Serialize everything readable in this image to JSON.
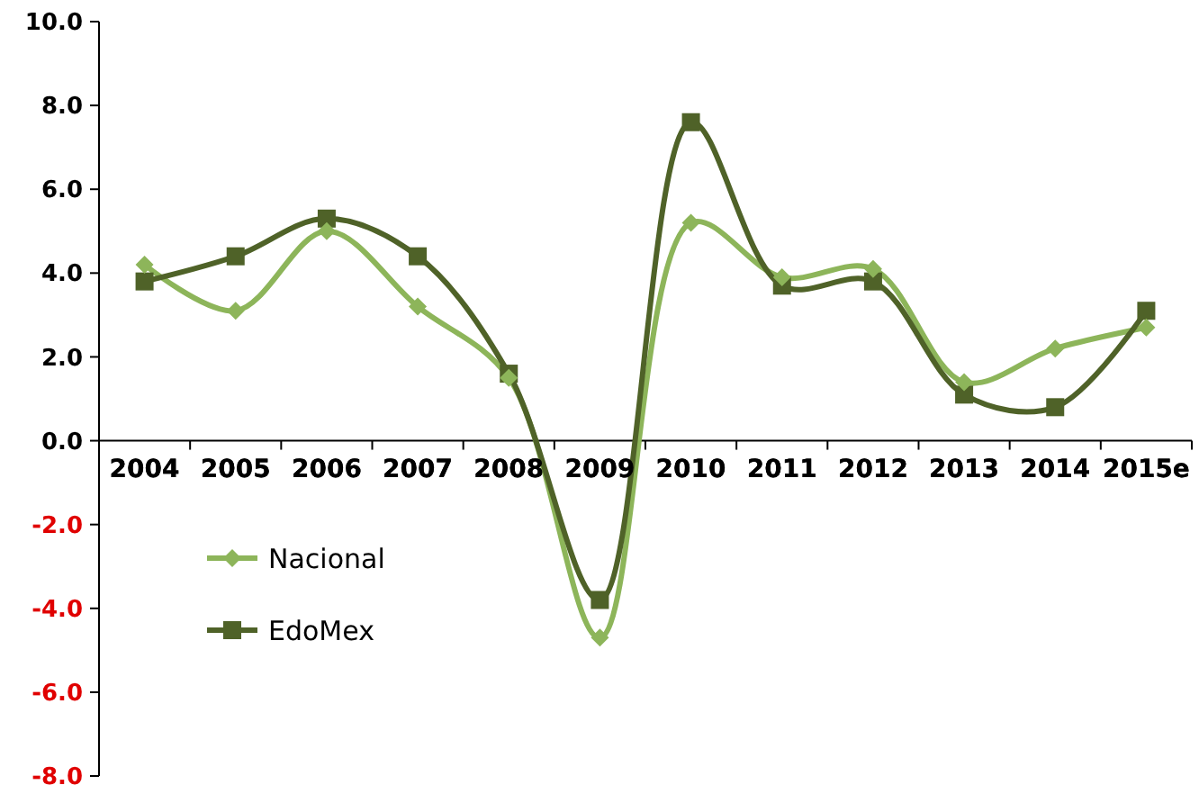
{
  "chart_data": {
    "type": "line",
    "categories": [
      "2004",
      "2005",
      "2006",
      "2007",
      "2008",
      "2009",
      "2010",
      "2011",
      "2012",
      "2013",
      "2014",
      "2015e"
    ],
    "series": [
      {
        "name": "Nacional",
        "color": "#8db55a",
        "marker": "diamond",
        "values": [
          4.2,
          3.1,
          5.0,
          3.2,
          1.5,
          -4.7,
          5.2,
          3.9,
          4.1,
          1.4,
          2.2,
          2.7
        ]
      },
      {
        "name": "EdoMex",
        "color": "#4f6228",
        "marker": "square",
        "values": [
          3.8,
          4.4,
          5.3,
          4.4,
          1.6,
          -3.8,
          7.6,
          3.7,
          3.8,
          1.1,
          0.8,
          3.1
        ]
      }
    ],
    "ylim": [
      -8,
      10
    ],
    "yticks": [
      {
        "value": -8,
        "label": "-8.0"
      },
      {
        "value": -6,
        "label": "-6.0"
      },
      {
        "value": -4,
        "label": "-4.0"
      },
      {
        "value": -2,
        "label": "-2.0"
      },
      {
        "value": 0,
        "label": "0.0"
      },
      {
        "value": 2,
        "label": "2.0"
      },
      {
        "value": 4,
        "label": "4.0"
      },
      {
        "value": 6,
        "label": "6.0"
      },
      {
        "value": 8,
        "label": "8.0"
      },
      {
        "value": 10,
        "label": "10.0"
      }
    ],
    "grid": false,
    "legend": "bottom left",
    "line_style": "solid"
  }
}
